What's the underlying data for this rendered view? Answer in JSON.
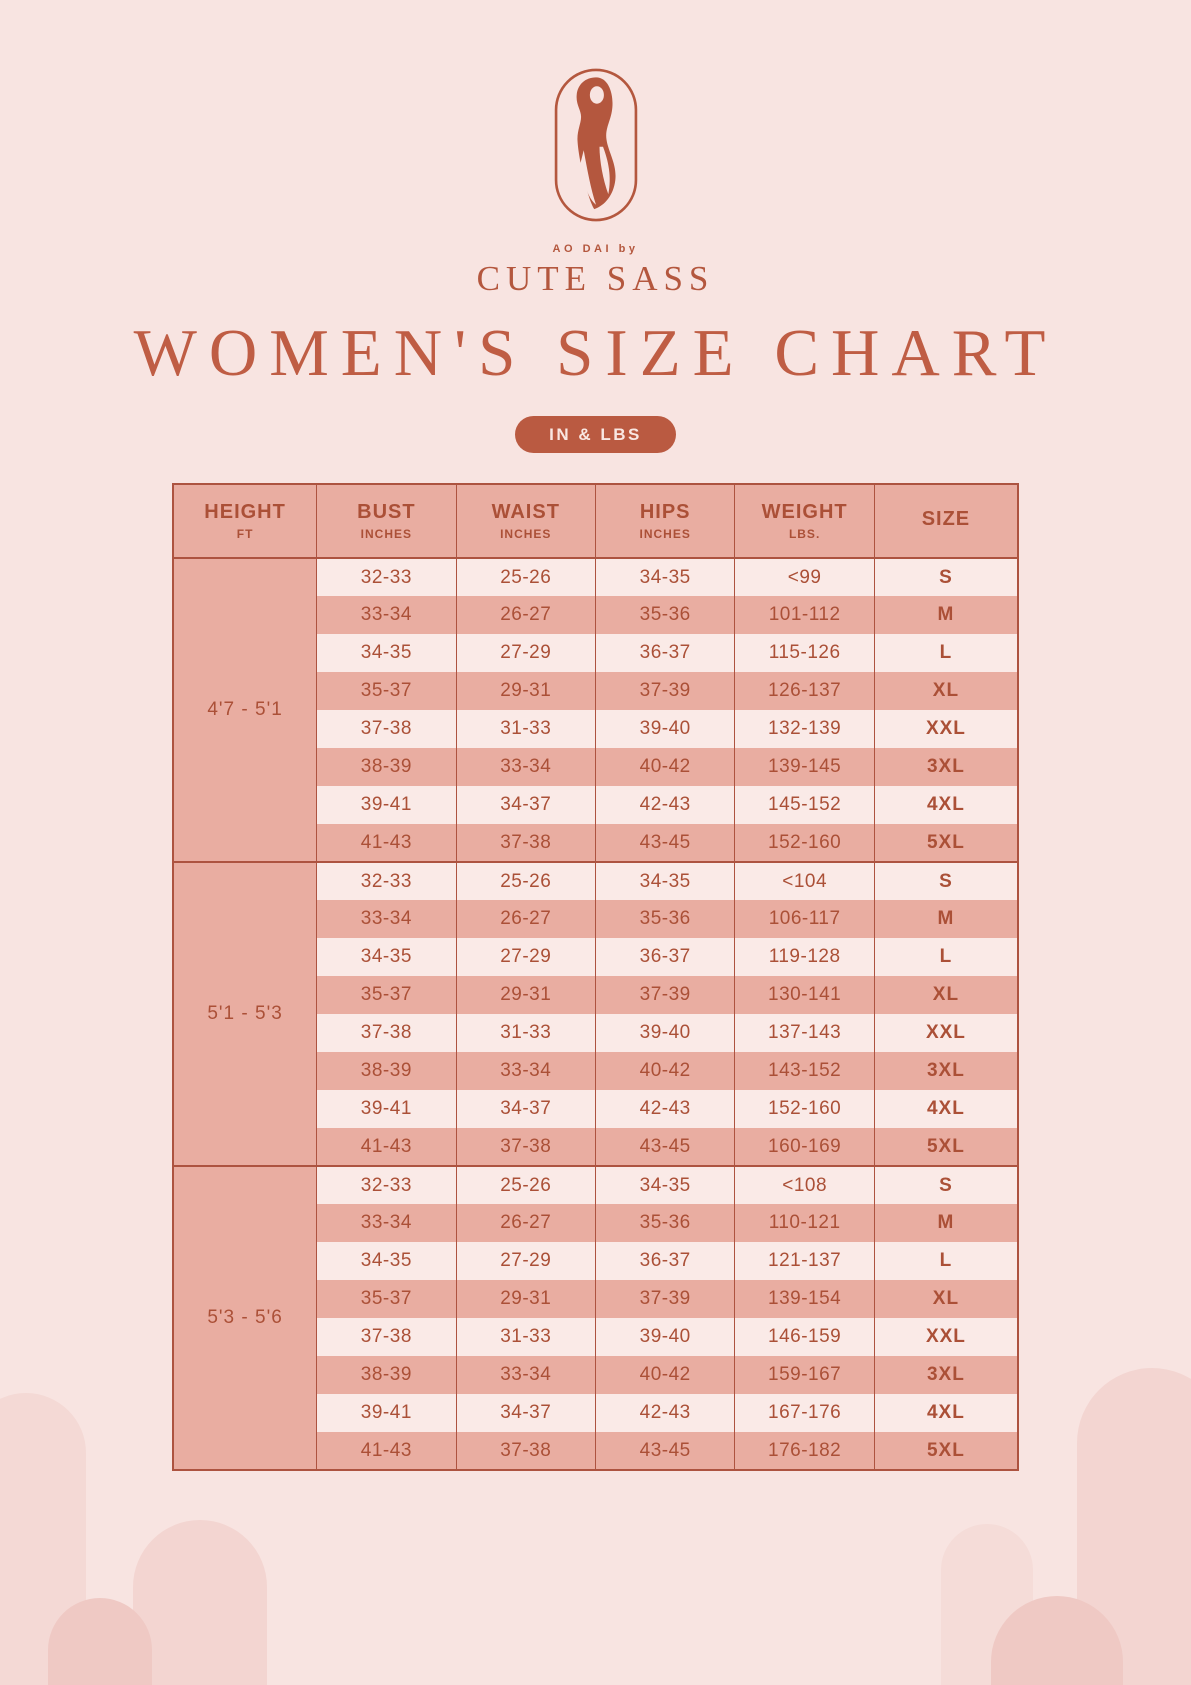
{
  "page": {
    "background_color": "#f8e4e1",
    "accent_color": "#b4573e",
    "stripe_dark_color": "#e9ada1",
    "stripe_light_color": "#faeae7",
    "border_color": "#ad5340",
    "badge_color": "#ba5a41"
  },
  "brand": {
    "logo_icon": "woman-in-ao-dai-oval-logo",
    "sub_label": "AO DAI by",
    "name": "CUTE SASS"
  },
  "title": "WOMEN'S SIZE CHART",
  "units_badge": "IN & LBS",
  "table": {
    "columns": [
      {
        "label": "HEIGHT",
        "sub": "FT"
      },
      {
        "label": "BUST",
        "sub": "INCHES"
      },
      {
        "label": "WAIST",
        "sub": "INCHES"
      },
      {
        "label": "HIPS",
        "sub": "INCHES"
      },
      {
        "label": "WEIGHT",
        "sub": "LBS."
      },
      {
        "label": "SIZE",
        "sub": ""
      }
    ],
    "groups": [
      {
        "height": "4'7 - 5'1",
        "rows": [
          {
            "bust": "32-33",
            "waist": "25-26",
            "hips": "34-35",
            "weight": "<99",
            "size": "S"
          },
          {
            "bust": "33-34",
            "waist": "26-27",
            "hips": "35-36",
            "weight": "101-112",
            "size": "M"
          },
          {
            "bust": "34-35",
            "waist": "27-29",
            "hips": "36-37",
            "weight": "115-126",
            "size": "L"
          },
          {
            "bust": "35-37",
            "waist": "29-31",
            "hips": "37-39",
            "weight": "126-137",
            "size": "XL"
          },
          {
            "bust": "37-38",
            "waist": "31-33",
            "hips": "39-40",
            "weight": "132-139",
            "size": "XXL"
          },
          {
            "bust": "38-39",
            "waist": "33-34",
            "hips": "40-42",
            "weight": "139-145",
            "size": "3XL"
          },
          {
            "bust": "39-41",
            "waist": "34-37",
            "hips": "42-43",
            "weight": "145-152",
            "size": "4XL"
          },
          {
            "bust": "41-43",
            "waist": "37-38",
            "hips": "43-45",
            "weight": "152-160",
            "size": "5XL"
          }
        ]
      },
      {
        "height": "5'1 - 5'3",
        "rows": [
          {
            "bust": "32-33",
            "waist": "25-26",
            "hips": "34-35",
            "weight": "<104",
            "size": "S"
          },
          {
            "bust": "33-34",
            "waist": "26-27",
            "hips": "35-36",
            "weight": "106-117",
            "size": "M"
          },
          {
            "bust": "34-35",
            "waist": "27-29",
            "hips": "36-37",
            "weight": "119-128",
            "size": "L"
          },
          {
            "bust": "35-37",
            "waist": "29-31",
            "hips": "37-39",
            "weight": "130-141",
            "size": "XL"
          },
          {
            "bust": "37-38",
            "waist": "31-33",
            "hips": "39-40",
            "weight": "137-143",
            "size": "XXL"
          },
          {
            "bust": "38-39",
            "waist": "33-34",
            "hips": "40-42",
            "weight": "143-152",
            "size": "3XL"
          },
          {
            "bust": "39-41",
            "waist": "34-37",
            "hips": "42-43",
            "weight": "152-160",
            "size": "4XL"
          },
          {
            "bust": "41-43",
            "waist": "37-38",
            "hips": "43-45",
            "weight": "160-169",
            "size": "5XL"
          }
        ]
      },
      {
        "height": "5'3 - 5'6",
        "rows": [
          {
            "bust": "32-33",
            "waist": "25-26",
            "hips": "34-35",
            "weight": "<108",
            "size": "S"
          },
          {
            "bust": "33-34",
            "waist": "26-27",
            "hips": "35-36",
            "weight": "110-121",
            "size": "M"
          },
          {
            "bust": "34-35",
            "waist": "27-29",
            "hips": "36-37",
            "weight": "121-137",
            "size": "L"
          },
          {
            "bust": "35-37",
            "waist": "29-31",
            "hips": "37-39",
            "weight": "139-154",
            "size": "XL"
          },
          {
            "bust": "37-38",
            "waist": "31-33",
            "hips": "39-40",
            "weight": "146-159",
            "size": "XXL"
          },
          {
            "bust": "38-39",
            "waist": "33-34",
            "hips": "40-42",
            "weight": "159-167",
            "size": "3XL"
          },
          {
            "bust": "39-41",
            "waist": "34-37",
            "hips": "42-43",
            "weight": "167-176",
            "size": "4XL"
          },
          {
            "bust": "41-43",
            "waist": "37-38",
            "hips": "43-45",
            "weight": "176-182",
            "size": "5XL"
          }
        ]
      }
    ]
  }
}
